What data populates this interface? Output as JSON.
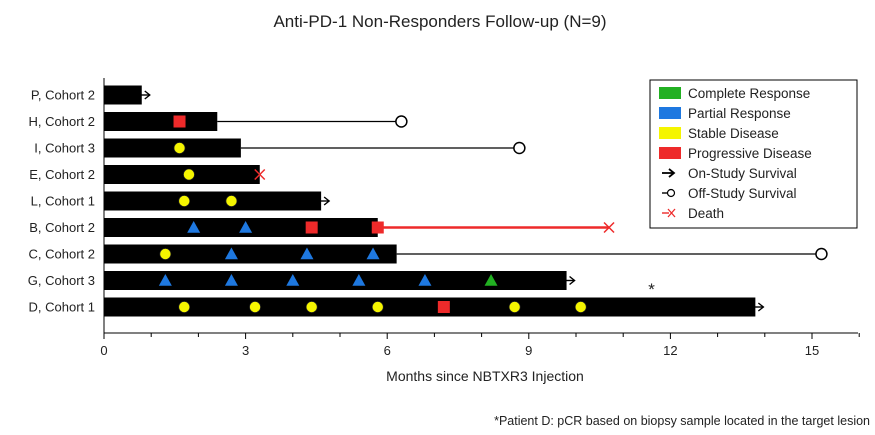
{
  "chart_data": {
    "type": "swimmer",
    "title": "Anti-PD-1 Non-Responders Follow-up (N=9)",
    "xlabel": "Months since NBTXR3 Injection",
    "xlim": [
      0,
      16
    ],
    "xticks": [
      0,
      3,
      6,
      9,
      12,
      15
    ],
    "legend": {
      "placement": "top-right",
      "entries": [
        {
          "key": "CR",
          "label": "Complete Response",
          "color": "#22b022",
          "symbol": "rect"
        },
        {
          "key": "PR",
          "label": "Partial Response",
          "color": "#1e78e0",
          "symbol": "rect"
        },
        {
          "key": "SD",
          "label": "Stable Disease",
          "color": "#f5f500",
          "symbol": "rect"
        },
        {
          "key": "PD",
          "label": "Progressive Disease",
          "color": "#ee2a2a",
          "symbol": "rect"
        },
        {
          "key": "on",
          "label": "On-Study Survival",
          "color": "#000000",
          "symbol": "arrow"
        },
        {
          "key": "off",
          "label": "Off-Study Survival",
          "color": "#000000",
          "symbol": "open-circle"
        },
        {
          "key": "death",
          "label": "Death",
          "color": "#ee2a2a",
          "symbol": "x"
        }
      ]
    },
    "patients": [
      {
        "label": "P, Cohort 2",
        "bar_end": 0.8,
        "events": [],
        "survival": {
          "type": "on",
          "end": 0.8
        }
      },
      {
        "label": "H, Cohort 2",
        "bar_end": 2.4,
        "events": [
          {
            "type": "PD",
            "x": 1.6
          }
        ],
        "survival": {
          "type": "off",
          "end": 6.3
        }
      },
      {
        "label": "I, Cohort 3",
        "bar_end": 2.9,
        "events": [
          {
            "type": "SD",
            "x": 1.6
          }
        ],
        "survival": {
          "type": "off",
          "end": 8.8
        }
      },
      {
        "label": "E, Cohort 2",
        "bar_end": 3.3,
        "events": [
          {
            "type": "SD",
            "x": 1.8
          }
        ],
        "survival": {
          "type": "death",
          "end": 3.3
        }
      },
      {
        "label": "L, Cohort 1",
        "bar_end": 4.6,
        "events": [
          {
            "type": "SD",
            "x": 1.7
          },
          {
            "type": "SD",
            "x": 2.7
          }
        ],
        "survival": {
          "type": "on",
          "end": 4.6
        }
      },
      {
        "label": "B, Cohort 2",
        "bar_end": 5.8,
        "events": [
          {
            "type": "PR",
            "x": 1.9
          },
          {
            "type": "PR",
            "x": 3.0
          },
          {
            "type": "PD",
            "x": 4.4
          },
          {
            "type": "PD",
            "x": 5.8
          }
        ],
        "survival": {
          "type": "death",
          "end": 10.7
        }
      },
      {
        "label": "C, Cohort 2",
        "bar_end": 6.2,
        "events": [
          {
            "type": "SD",
            "x": 1.3
          },
          {
            "type": "PR",
            "x": 2.7
          },
          {
            "type": "PR",
            "x": 4.3
          },
          {
            "type": "PR",
            "x": 5.7
          }
        ],
        "survival": {
          "type": "off",
          "end": 15.2
        }
      },
      {
        "label": "G, Cohort 3",
        "bar_end": 9.8,
        "events": [
          {
            "type": "PR",
            "x": 1.3
          },
          {
            "type": "PR",
            "x": 2.7
          },
          {
            "type": "PR",
            "x": 4.0
          },
          {
            "type": "PR",
            "x": 5.4
          },
          {
            "type": "PR",
            "x": 6.8
          },
          {
            "type": "CR",
            "x": 8.2
          }
        ],
        "survival": {
          "type": "on",
          "end": 9.8
        }
      },
      {
        "label": "D, Cohort 1",
        "bar_end": 13.8,
        "events": [
          {
            "type": "SD",
            "x": 1.7
          },
          {
            "type": "SD",
            "x": 3.2
          },
          {
            "type": "SD",
            "x": 4.4
          },
          {
            "type": "SD",
            "x": 5.8
          },
          {
            "type": "PD",
            "x": 7.2
          },
          {
            "type": "SD",
            "x": 8.7
          },
          {
            "type": "SD",
            "x": 10.1
          }
        ],
        "survival": {
          "type": "on",
          "end": 13.8
        }
      }
    ],
    "annotation": {
      "text": "*",
      "x": 11.6,
      "patient_index": 8
    },
    "footnote": "*Patient D: pCR based on biopsy sample located in the target lesion"
  }
}
